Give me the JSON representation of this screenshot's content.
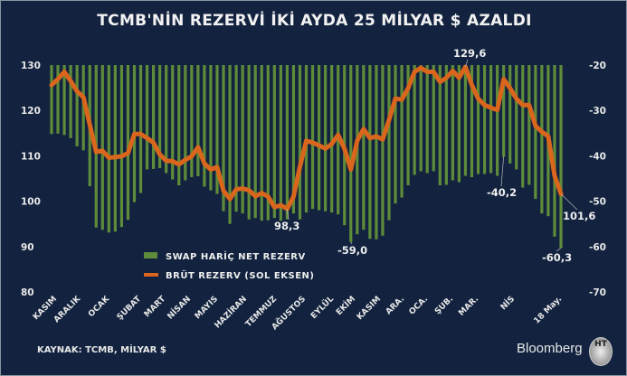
{
  "chart_data": {
    "type": "bar+line",
    "title": "TCMB'NİN REZERVİ İKİ AYDA 25 MİLYAR $ AZALDI",
    "left_axis": {
      "ylim": [
        80,
        130
      ],
      "ticks": [
        "130",
        "120",
        "110",
        "100",
        "90",
        "80"
      ]
    },
    "right_axis": {
      "ylim": [
        -70,
        -20
      ],
      "ticks": [
        "-20",
        "-30",
        "-40",
        "-50",
        "-60",
        "-70"
      ]
    },
    "x_tick_labels": [
      "KASIM",
      "ARALIK",
      "OCAK",
      "ŞUBAT",
      "MART",
      "NİSAN",
      "MAYIS",
      "HAZİRAN",
      "TEMMUZ",
      "AĞUSTOS",
      "EYLÜL",
      "EKİM",
      "KASIM",
      "ARA.",
      "OCA.",
      "ŞUB.",
      "MAR.",
      "NİS",
      "18 May."
    ],
    "series": [
      {
        "name": "SWAP HARİÇ NET REZERV",
        "type": "bar",
        "axis": "right",
        "color": "#5e8c3a",
        "values": [
          -35.2,
          -35.1,
          -35.4,
          -36.1,
          -37.9,
          -38.8,
          -46.7,
          -55.8,
          -56.3,
          -56.9,
          -56.7,
          -55.7,
          -54.1,
          -50.2,
          -48.2,
          -43.0,
          -42.9,
          -42.7,
          -43.8,
          -45.2,
          -46.5,
          -45.4,
          -44.7,
          -44.5,
          -46.8,
          -47.6,
          -48.4,
          -52.2,
          -55.0,
          -52.3,
          -52.7,
          -54.0,
          -53.7,
          -54.3,
          -54.2,
          -53.7,
          -54.3,
          -54.0,
          -52.7,
          -54.0,
          -52.5,
          -51.7,
          -52.0,
          -52.2,
          -52.5,
          -52.9,
          -55.3,
          -59.0,
          -57.3,
          -56.3,
          -58.3,
          -58.4,
          -57.6,
          -54.2,
          -50.5,
          -49.2,
          -46.5,
          -44.2,
          -43.4,
          -43.8,
          -43.4,
          -46.5,
          -46.4,
          -45.4,
          -45.8,
          -44.4,
          -44.7,
          -44.0,
          -44.0,
          -43.8,
          -44.4,
          -40.2,
          -41.7,
          -43.0,
          -47.0,
          -46.4,
          -49.5,
          -52.7,
          -53.3,
          -57.8,
          -60.3
        ]
      },
      {
        "name": "BRÜT REZERV (SOL EKSEN)",
        "type": "line",
        "axis": "left",
        "color": "#d9661c",
        "values": [
          125.6,
          126.9,
          128.5,
          126.5,
          124.2,
          122.9,
          116.9,
          110.9,
          111.1,
          109.6,
          109.7,
          109.9,
          110.6,
          114.8,
          114.8,
          113.9,
          112.9,
          110.3,
          108.9,
          108.8,
          108.1,
          109.1,
          109.9,
          111.9,
          108.3,
          107.0,
          107.5,
          102.3,
          100.5,
          102.6,
          102.8,
          102.4,
          101.1,
          101.8,
          101.0,
          98.7,
          99.1,
          98.3,
          101.0,
          107.6,
          113.3,
          112.9,
          112.3,
          111.6,
          112.6,
          114.6,
          111.6,
          107.0,
          113.3,
          115.9,
          113.9,
          114.3,
          113.6,
          117.9,
          122.6,
          122.4,
          124.9,
          128.5,
          129.4,
          128.5,
          128.5,
          126.3,
          127.2,
          128.7,
          127.2,
          129.6,
          125.6,
          122.6,
          121.2,
          120.6,
          120.1,
          126.9,
          124.9,
          122.6,
          121.2,
          121.2,
          116.6,
          115.3,
          114.3,
          105.6,
          101.6
        ]
      }
    ],
    "annotations": [
      {
        "text": "98,3",
        "series": 1,
        "index": 37
      },
      {
        "text": "-59,0",
        "series": 0,
        "index": 47
      },
      {
        "text": "129,6",
        "series": 1,
        "index": 65
      },
      {
        "text": "-40,2",
        "series": 0,
        "index": 71
      },
      {
        "text": "101,6",
        "series": 1,
        "index": 80
      },
      {
        "text": "-60,3",
        "series": 0,
        "index": 80
      }
    ],
    "legend": "center-bottom",
    "grid": false
  },
  "footer": {
    "source": "KAYNAK: TCMB, MİLYAR $",
    "logo": "Bloomberg",
    "badge": "HT"
  }
}
